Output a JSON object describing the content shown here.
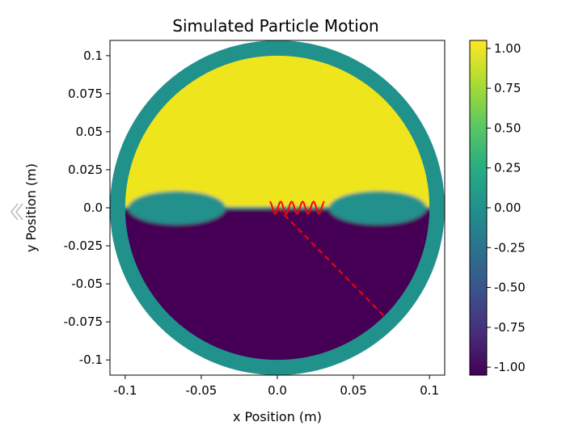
{
  "chart_data": {
    "type": "heatmap",
    "title": "Simulated Particle Motion",
    "xlabel": "x Position (m)",
    "ylabel": "y Position (m)",
    "xlim": [
      -0.11,
      0.11
    ],
    "ylim": [
      -0.11,
      0.11
    ],
    "x_ticks": [
      {
        "value": -0.1,
        "label": "-0.1"
      },
      {
        "value": -0.05,
        "label": "-0.05"
      },
      {
        "value": 0.0,
        "label": "0.0"
      },
      {
        "value": 0.05,
        "label": "0.05"
      },
      {
        "value": 0.1,
        "label": "0.1"
      }
    ],
    "y_ticks": [
      {
        "value": 0.1,
        "label": "0.1"
      },
      {
        "value": 0.075,
        "label": "0.075"
      },
      {
        "value": 0.05,
        "label": "0.05"
      },
      {
        "value": 0.025,
        "label": "0.025"
      },
      {
        "value": 0.0,
        "label": "0.0"
      },
      {
        "value": -0.025,
        "label": "-0.025"
      },
      {
        "value": -0.05,
        "label": "-0.05"
      },
      {
        "value": -0.075,
        "label": "-0.075"
      },
      {
        "value": -0.1,
        "label": "-0.1"
      }
    ],
    "colormap": "viridis",
    "colorbar": {
      "range": [
        -1.05,
        1.05
      ],
      "ticks": [
        {
          "value": 1.0,
          "label": "1.00"
        },
        {
          "value": 0.75,
          "label": "0.75"
        },
        {
          "value": 0.5,
          "label": "0.50"
        },
        {
          "value": 0.25,
          "label": "0.25"
        },
        {
          "value": 0.0,
          "label": "0.00"
        },
        {
          "value": -0.25,
          "label": "-0.25"
        },
        {
          "value": -0.5,
          "label": "-0.50"
        },
        {
          "value": -0.75,
          "label": "-0.75"
        },
        {
          "value": -1.0,
          "label": "-1.00"
        }
      ]
    },
    "field": {
      "outer_radius": 0.11,
      "inner_radius": 0.1,
      "ring_value": 0.0,
      "upper_value": 1.0,
      "lower_value": -1.0,
      "lobes": [
        {
          "cx": -0.066,
          "cy": 0.0,
          "rx": 0.032,
          "ry": 0.011,
          "value": 0.0
        },
        {
          "cx": 0.066,
          "cy": 0.0,
          "rx": 0.032,
          "ry": 0.011,
          "value": 0.0
        }
      ],
      "colors": {
        "upper": "#efe51c",
        "lower": "#440256",
        "ring": "#21918c",
        "background": "#ffffff"
      }
    },
    "trajectories": [
      {
        "style": "solid-oscillation",
        "color": "#ff0000",
        "x_start": -0.005,
        "x_end": 0.031,
        "y_center": 0.0,
        "amplitude": 0.004,
        "cycles": 5
      },
      {
        "style": "dashed",
        "color": "#ff0000",
        "x": [
          0.0,
          0.07
        ],
        "y": [
          0.0,
          -0.071
        ]
      }
    ]
  }
}
